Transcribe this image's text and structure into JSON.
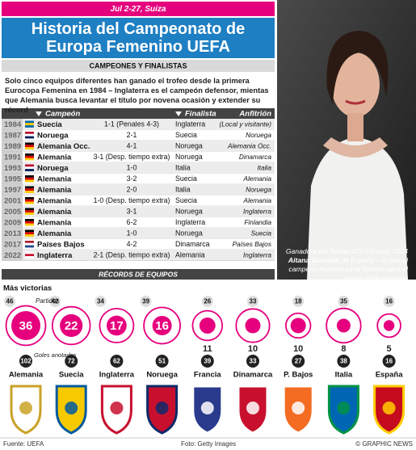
{
  "header": {
    "date": "Jul 2-27, Suiza",
    "title": "Historia del Campeonato de Europa Femenino UEFA",
    "subtitle": "Campeones y Finalistas",
    "intro": "Solo cinco equipos diferentes han ganado el trofeo desde la primera Eurocopa Femenina en 1984 – Inglaterra es el campeón defensor, mientas que Alemania busca levantar el título por novena ocasión y extender su récord"
  },
  "table": {
    "columns": [
      "Campeón",
      "Finalista",
      "Anfitrión"
    ],
    "rows": [
      [
        "1984",
        "Suecia",
        "1-1 (Penales 4-3)",
        "Inglaterra",
        "(Local y visitante)"
      ],
      [
        "1987",
        "Noruega",
        "2-1",
        "Suecia",
        "Noruega"
      ],
      [
        "1989",
        "Alemania Occ.",
        "4-1",
        "Noruega",
        "Alemania Occ."
      ],
      [
        "1991",
        "Alemania",
        "3-1 (Desp. tiempo extra)",
        "Noruega",
        "Dinamarca"
      ],
      [
        "1993",
        "Noruega",
        "1-0",
        "Italia",
        "Italia"
      ],
      [
        "1995",
        "Alemania",
        "3-2",
        "Suecia",
        "Alemania"
      ],
      [
        "1997",
        "Alemania",
        "2-0",
        "Italia",
        "Noruega"
      ],
      [
        "2001",
        "Alemania",
        "1-0 (Desp. tiempo extra)",
        "Suecia",
        "Alemania"
      ],
      [
        "2005",
        "Alemania",
        "3-1",
        "Noruega",
        "Inglaterra"
      ],
      [
        "2009",
        "Alemania",
        "6-2",
        "Inglaterra",
        "Finlandia"
      ],
      [
        "2013",
        "Alemania",
        "1-0",
        "Noruega",
        "Suecia"
      ],
      [
        "2017",
        "Países Bajos",
        "4-2",
        "Dinamarca",
        "Países Bajos"
      ],
      [
        "2022",
        "Inglaterra",
        "2-1 (Desp. tiempo extra)",
        "Alemania",
        "Inglaterra"
      ]
    ]
  },
  "photo": {
    "caption_1": "Ganadora del Ballon d'Or Féminin 2024",
    "name": "Aitana Bonmatí",
    "caption_2": "de España – el actual campeón mundial es el favorito para el primer título europeo"
  },
  "records": {
    "title": "Récords de Equipos",
    "most_wins": "Más victorias",
    "matches_label": "Partidos",
    "goals_label": "Goles anotados",
    "teams": [
      {
        "name": "Alemania",
        "wins": 36,
        "matches": 46,
        "goals": 102
      },
      {
        "name": "Suecia",
        "wins": 22,
        "matches": 42,
        "goals": 72
      },
      {
        "name": "Inglaterra",
        "wins": 17,
        "matches": 34,
        "goals": 62
      },
      {
        "name": "Noruega",
        "wins": 16,
        "matches": 39,
        "goals": 51
      },
      {
        "name": "Francia",
        "wins": 11,
        "matches": 26,
        "goals": 39
      },
      {
        "name": "Dinamarca",
        "wins": 10,
        "matches": 33,
        "goals": 33
      },
      {
        "name": "P. Bajos",
        "wins": 10,
        "matches": 18,
        "goals": 27
      },
      {
        "name": "Italia",
        "wins": 8,
        "matches": 35,
        "goals": 38
      },
      {
        "name": "España",
        "wins": 5,
        "matches": 16,
        "goals": 16
      }
    ]
  },
  "footer": {
    "source": "Fuente: UEFA",
    "photo": "Foto: Getty Images",
    "credit": "© GRAPHIC NEWS"
  }
}
